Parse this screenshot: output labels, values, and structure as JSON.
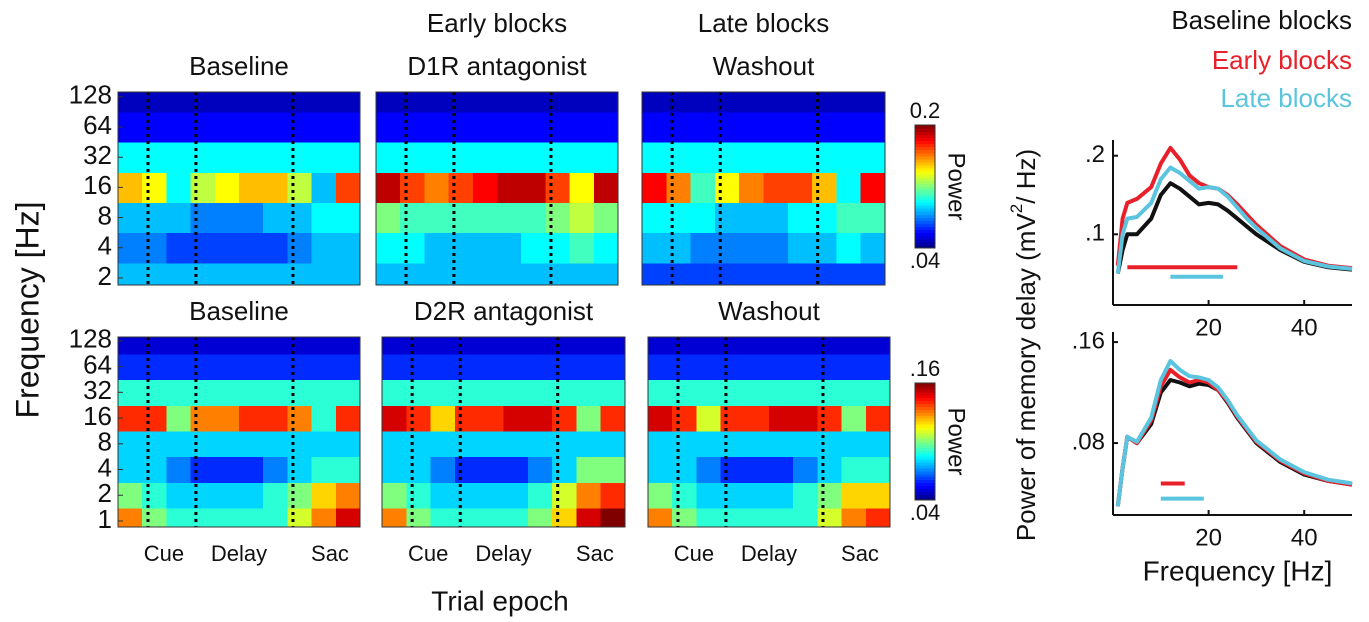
{
  "figure": {
    "ylabel": "Frequency [Hz]",
    "xlabel": "Trial epoch",
    "line_ylabel": {
      "text": "Power of memory  delay  (mV",
      "superscript": "2",
      "after": "/ Hz)"
    }
  },
  "chart_data": [
    {
      "type": "heatmap",
      "title": "Baseline",
      "log_y": true,
      "colormap": "jet",
      "clim": [
        0.04,
        0.2
      ],
      "y": [
        2,
        4,
        8,
        16,
        32,
        64,
        128
      ],
      "ylim": [
        1.7,
        143
      ],
      "yticks": [
        2,
        4,
        8,
        16,
        32,
        64,
        128
      ],
      "values": [
        [
          0.09,
          0.09,
          0.09,
          0.09,
          0.09,
          0.09,
          0.09,
          0.09,
          0.09,
          0.09
        ],
        [
          0.08,
          0.08,
          0.07,
          0.07,
          0.07,
          0.07,
          0.07,
          0.08,
          0.09,
          0.09
        ],
        [
          0.09,
          0.09,
          0.09,
          0.08,
          0.08,
          0.08,
          0.09,
          0.09,
          0.1,
          0.1
        ],
        [
          0.15,
          0.14,
          0.1,
          0.13,
          0.14,
          0.15,
          0.15,
          0.13,
          0.09,
          0.17
        ],
        [
          0.1,
          0.1,
          0.1,
          0.1,
          0.1,
          0.1,
          0.1,
          0.1,
          0.1,
          0.1
        ],
        [
          0.06,
          0.06,
          0.06,
          0.06,
          0.06,
          0.06,
          0.06,
          0.06,
          0.06,
          0.06
        ],
        [
          0.05,
          0.05,
          0.05,
          0.05,
          0.05,
          0.05,
          0.05,
          0.05,
          0.05,
          0.05
        ]
      ]
    },
    {
      "type": "heatmap",
      "supertitle": "Early blocks",
      "title": "D1R antagonist",
      "log_y": true,
      "colormap": "jet",
      "clim": [
        0.04,
        0.2
      ],
      "y": [
        2,
        4,
        8,
        16,
        32,
        64,
        128
      ],
      "ylim": [
        1.7,
        143
      ],
      "values": [
        [
          0.09,
          0.09,
          0.09,
          0.09,
          0.09,
          0.09,
          0.09,
          0.09,
          0.09,
          0.09
        ],
        [
          0.1,
          0.1,
          0.09,
          0.09,
          0.09,
          0.09,
          0.1,
          0.1,
          0.11,
          0.1
        ],
        [
          0.12,
          0.11,
          0.11,
          0.11,
          0.11,
          0.11,
          0.11,
          0.12,
          0.13,
          0.12
        ],
        [
          0.19,
          0.17,
          0.16,
          0.17,
          0.18,
          0.19,
          0.19,
          0.17,
          0.14,
          0.19
        ],
        [
          0.1,
          0.1,
          0.1,
          0.1,
          0.1,
          0.1,
          0.1,
          0.1,
          0.1,
          0.1
        ],
        [
          0.06,
          0.06,
          0.06,
          0.06,
          0.06,
          0.06,
          0.06,
          0.06,
          0.06,
          0.06
        ],
        [
          0.05,
          0.05,
          0.05,
          0.05,
          0.05,
          0.05,
          0.05,
          0.05,
          0.05,
          0.05
        ]
      ]
    },
    {
      "type": "heatmap",
      "supertitle": "Late blocks",
      "title": "Washout",
      "log_y": true,
      "colormap": "jet",
      "clim": [
        0.04,
        0.2
      ],
      "y": [
        2,
        4,
        8,
        16,
        32,
        64,
        128
      ],
      "ylim": [
        1.7,
        143
      ],
      "colorbar": {
        "label": "Power",
        "ticks": [
          {
            "value": 0.04,
            "label": ".04"
          },
          0.2
        ]
      },
      "values": [
        [
          0.07,
          0.07,
          0.07,
          0.07,
          0.07,
          0.07,
          0.07,
          0.07,
          0.07,
          0.07
        ],
        [
          0.09,
          0.09,
          0.08,
          0.08,
          0.08,
          0.08,
          0.09,
          0.09,
          0.1,
          0.09
        ],
        [
          0.1,
          0.1,
          0.1,
          0.09,
          0.09,
          0.09,
          0.1,
          0.1,
          0.11,
          0.11
        ],
        [
          0.18,
          0.16,
          0.11,
          0.14,
          0.16,
          0.17,
          0.17,
          0.15,
          0.1,
          0.18
        ],
        [
          0.1,
          0.1,
          0.1,
          0.1,
          0.1,
          0.1,
          0.1,
          0.1,
          0.1,
          0.1
        ],
        [
          0.06,
          0.06,
          0.06,
          0.06,
          0.06,
          0.06,
          0.06,
          0.06,
          0.06,
          0.06
        ],
        [
          0.05,
          0.05,
          0.05,
          0.05,
          0.05,
          0.05,
          0.05,
          0.05,
          0.05,
          0.05
        ]
      ]
    },
    {
      "type": "heatmap",
      "title": "Baseline",
      "log_y": true,
      "colormap": "jet",
      "clim": [
        0.04,
        0.16
      ],
      "y": [
        1,
        2,
        4,
        8,
        16,
        32,
        64,
        128
      ],
      "ylim": [
        0.85,
        142
      ],
      "yticks": [
        1,
        2,
        4,
        8,
        16,
        32,
        64,
        128
      ],
      "categories": [
        "Cue",
        "Delay",
        "Sac"
      ],
      "values": [
        [
          0.13,
          0.1,
          0.09,
          0.09,
          0.09,
          0.09,
          0.09,
          0.11,
          0.13,
          0.15
        ],
        [
          0.1,
          0.09,
          0.08,
          0.08,
          0.08,
          0.08,
          0.09,
          0.1,
          0.12,
          0.13
        ],
        [
          0.08,
          0.08,
          0.07,
          0.06,
          0.06,
          0.06,
          0.07,
          0.08,
          0.09,
          0.09
        ],
        [
          0.08,
          0.08,
          0.08,
          0.08,
          0.08,
          0.08,
          0.08,
          0.08,
          0.08,
          0.08
        ],
        [
          0.14,
          0.14,
          0.1,
          0.13,
          0.13,
          0.14,
          0.14,
          0.13,
          0.09,
          0.14
        ],
        [
          0.09,
          0.09,
          0.09,
          0.09,
          0.09,
          0.09,
          0.09,
          0.09,
          0.09,
          0.09
        ],
        [
          0.06,
          0.06,
          0.06,
          0.06,
          0.06,
          0.06,
          0.06,
          0.06,
          0.06,
          0.06
        ],
        [
          0.05,
          0.05,
          0.05,
          0.05,
          0.05,
          0.05,
          0.05,
          0.05,
          0.05,
          0.05
        ]
      ]
    },
    {
      "type": "heatmap",
      "title": "D2R antagonist",
      "log_y": true,
      "colormap": "jet",
      "clim": [
        0.04,
        0.16
      ],
      "y": [
        1,
        2,
        4,
        8,
        16,
        32,
        64,
        128
      ],
      "ylim": [
        0.85,
        142
      ],
      "categories": [
        "Cue",
        "Delay",
        "Sac"
      ],
      "values": [
        [
          0.13,
          0.1,
          0.09,
          0.09,
          0.09,
          0.09,
          0.1,
          0.12,
          0.15,
          0.16
        ],
        [
          0.1,
          0.09,
          0.08,
          0.08,
          0.08,
          0.08,
          0.09,
          0.11,
          0.13,
          0.14
        ],
        [
          0.08,
          0.08,
          0.07,
          0.06,
          0.06,
          0.06,
          0.07,
          0.08,
          0.1,
          0.1
        ],
        [
          0.08,
          0.08,
          0.08,
          0.08,
          0.08,
          0.08,
          0.08,
          0.08,
          0.08,
          0.08
        ],
        [
          0.15,
          0.14,
          0.12,
          0.14,
          0.14,
          0.15,
          0.15,
          0.14,
          0.1,
          0.14
        ],
        [
          0.09,
          0.09,
          0.09,
          0.09,
          0.09,
          0.09,
          0.09,
          0.09,
          0.09,
          0.09
        ],
        [
          0.06,
          0.06,
          0.06,
          0.06,
          0.06,
          0.06,
          0.06,
          0.06,
          0.06,
          0.06
        ],
        [
          0.05,
          0.05,
          0.05,
          0.05,
          0.05,
          0.05,
          0.05,
          0.05,
          0.05,
          0.05
        ]
      ]
    },
    {
      "type": "heatmap",
      "title": "Washout",
      "log_y": true,
      "colormap": "jet",
      "clim": [
        0.04,
        0.16
      ],
      "y": [
        1,
        2,
        4,
        8,
        16,
        32,
        64,
        128
      ],
      "ylim": [
        0.85,
        142
      ],
      "categories": [
        "Cue",
        "Delay",
        "Sac"
      ],
      "colorbar": {
        "label": "Power",
        "ticks": [
          {
            "value": 0.04,
            "label": ".04"
          },
          {
            "value": 0.16,
            "label": ".16"
          }
        ]
      },
      "values": [
        [
          0.13,
          0.1,
          0.09,
          0.09,
          0.09,
          0.09,
          0.09,
          0.11,
          0.13,
          0.14
        ],
        [
          0.1,
          0.09,
          0.08,
          0.08,
          0.08,
          0.08,
          0.09,
          0.1,
          0.12,
          0.12
        ],
        [
          0.08,
          0.08,
          0.07,
          0.06,
          0.06,
          0.06,
          0.07,
          0.08,
          0.09,
          0.09
        ],
        [
          0.08,
          0.08,
          0.08,
          0.08,
          0.08,
          0.08,
          0.08,
          0.08,
          0.08,
          0.08
        ],
        [
          0.15,
          0.14,
          0.11,
          0.14,
          0.14,
          0.15,
          0.15,
          0.14,
          0.1,
          0.14
        ],
        [
          0.09,
          0.09,
          0.09,
          0.09,
          0.09,
          0.09,
          0.09,
          0.09,
          0.09,
          0.09
        ],
        [
          0.06,
          0.06,
          0.06,
          0.06,
          0.06,
          0.06,
          0.06,
          0.06,
          0.06,
          0.06
        ],
        [
          0.05,
          0.05,
          0.05,
          0.05,
          0.05,
          0.05,
          0.05,
          0.05,
          0.05,
          0.05
        ]
      ]
    },
    {
      "type": "line",
      "xlim": [
        0,
        50
      ],
      "ylim": [
        0.01,
        0.22
      ],
      "xticks": [
        20,
        40
      ],
      "yticks": [
        {
          "value": 0.1,
          "label": ".1"
        },
        {
          "value": 0.2,
          "label": ".2"
        }
      ],
      "x": [
        1,
        2,
        3,
        5,
        8,
        10,
        12,
        14,
        16,
        18,
        20,
        22,
        24,
        26,
        28,
        30,
        35,
        40,
        45,
        50
      ],
      "series": [
        {
          "name": "Baseline blocks",
          "color": "#111111",
          "values": [
            0.05,
            0.08,
            0.1,
            0.1,
            0.12,
            0.15,
            0.165,
            0.158,
            0.148,
            0.138,
            0.14,
            0.138,
            0.13,
            0.12,
            0.11,
            0.1,
            0.08,
            0.065,
            0.058,
            0.055
          ]
        },
        {
          "name": "Early blocks",
          "color": "#e8202a",
          "values": [
            0.06,
            0.12,
            0.14,
            0.145,
            0.16,
            0.19,
            0.21,
            0.195,
            0.175,
            0.165,
            0.16,
            0.158,
            0.15,
            0.138,
            0.125,
            0.112,
            0.085,
            0.068,
            0.06,
            0.057
          ]
        },
        {
          "name": "Late blocks",
          "color": "#5bc4de",
          "values": [
            0.05,
            0.1,
            0.12,
            0.122,
            0.14,
            0.17,
            0.185,
            0.178,
            0.168,
            0.158,
            0.16,
            0.158,
            0.148,
            0.134,
            0.12,
            0.108,
            0.082,
            0.066,
            0.059,
            0.056
          ]
        }
      ],
      "sig_bars": [
        {
          "color": "#e8202a",
          "x": [
            3,
            26
          ],
          "y": 0.058
        },
        {
          "color": "#5bc4de",
          "x": [
            12,
            23
          ],
          "y": 0.046
        }
      ]
    },
    {
      "type": "line",
      "xlim": [
        0,
        50
      ],
      "ylim": [
        0.023,
        0.168
      ],
      "xticks": [
        20,
        40
      ],
      "xlabel": "Frequency [Hz]",
      "yticks": [
        {
          "value": 0.08,
          "label": ".08"
        },
        {
          "value": 0.16,
          "label": ".16"
        }
      ],
      "x": [
        1,
        2,
        3,
        5,
        8,
        10,
        12,
        14,
        16,
        18,
        20,
        22,
        24,
        26,
        28,
        30,
        35,
        40,
        45,
        50
      ],
      "series": [
        {
          "color": "#111111",
          "values": [
            0.03,
            0.06,
            0.085,
            0.08,
            0.095,
            0.12,
            0.13,
            0.128,
            0.125,
            0.127,
            0.126,
            0.122,
            0.112,
            0.1,
            0.09,
            0.08,
            0.065,
            0.055,
            0.05,
            0.047
          ]
        },
        {
          "color": "#e8202a",
          "values": [
            0.03,
            0.06,
            0.085,
            0.08,
            0.098,
            0.125,
            0.138,
            0.132,
            0.128,
            0.13,
            0.128,
            0.122,
            0.113,
            0.101,
            0.091,
            0.081,
            0.066,
            0.056,
            0.05,
            0.047
          ]
        },
        {
          "color": "#5bc4de",
          "values": [
            0.03,
            0.06,
            0.085,
            0.081,
            0.1,
            0.13,
            0.145,
            0.138,
            0.133,
            0.132,
            0.13,
            0.124,
            0.114,
            0.102,
            0.092,
            0.082,
            0.067,
            0.057,
            0.051,
            0.048
          ]
        }
      ],
      "sig_bars": [
        {
          "color": "#e8202a",
          "x": [
            10,
            15
          ],
          "y": 0.048
        },
        {
          "color": "#5bc4de",
          "x": [
            10,
            19
          ],
          "y": 0.036
        }
      ]
    }
  ]
}
